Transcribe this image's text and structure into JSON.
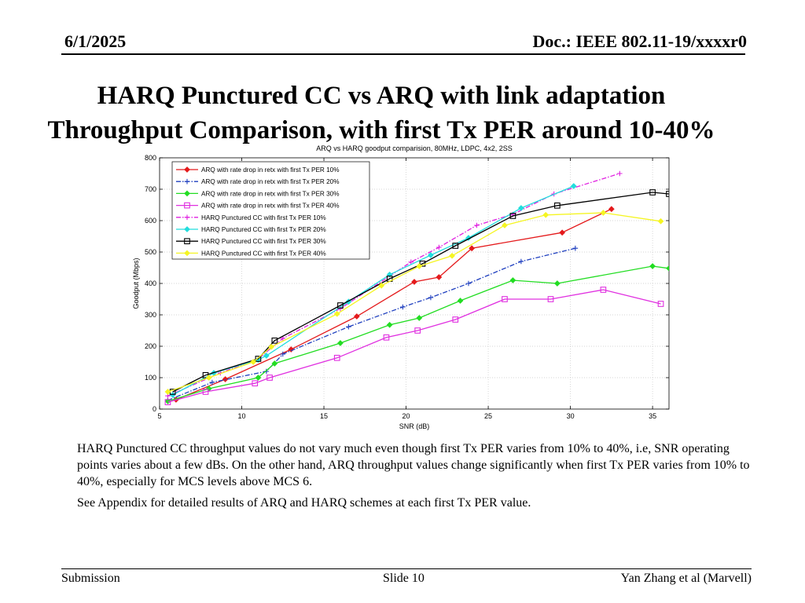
{
  "header": {
    "date": "6/1/2025",
    "doc": "Doc.: IEEE 802.11-19/xxxxr0"
  },
  "slide_title": {
    "line1": "HARQ Punctured CC vs ARQ with link adaptation",
    "line2": "Throughput Comparison, with first Tx PER around 10-40%"
  },
  "chart_data": {
    "type": "line",
    "title": "ARQ vs HARQ goodput comparision, 80MHz, LDPC, 4x2, 2SS",
    "xlabel": "SNR (dB)",
    "ylabel": "Goodput  (Mbps)",
    "xlim": [
      5,
      36
    ],
    "ylim": [
      0,
      800
    ],
    "xticks": [
      5,
      10,
      15,
      20,
      25,
      30,
      35
    ],
    "yticks": [
      0,
      100,
      200,
      300,
      400,
      500,
      600,
      700,
      800
    ],
    "grid": true,
    "legend_position": "top-left",
    "series": [
      {
        "name": "ARQ with rate drop in retx with first Tx PER 10%",
        "color": "#e41a1c",
        "dash": "solid",
        "marker": "diamond",
        "x": [
          6.0,
          9.0,
          13.0,
          17.0,
          20.5,
          22.0,
          24.0,
          29.5,
          32.5
        ],
        "y": [
          30,
          95,
          190,
          295,
          405,
          420,
          512,
          562,
          637
        ]
      },
      {
        "name": "ARQ with rate drop in retx with first Tx PER 20%",
        "color": "#1f3fbf",
        "dash": "dashdot",
        "marker": "plus",
        "x": [
          5.5,
          8.2,
          11.5,
          12.5,
          16.5,
          19.8,
          21.5,
          23.8,
          27.0,
          30.3
        ],
        "y": [
          28,
          85,
          120,
          175,
          262,
          325,
          355,
          400,
          470,
          512
        ]
      },
      {
        "name": "ARQ with rate drop in retx with first Tx PER 30%",
        "color": "#22dd22",
        "dash": "solid",
        "marker": "diamond",
        "x": [
          5.5,
          8.0,
          11.0,
          12.0,
          16.0,
          19.0,
          20.8,
          23.3,
          26.5,
          29.2,
          35.0,
          36.0
        ],
        "y": [
          25,
          65,
          100,
          145,
          210,
          268,
          290,
          345,
          410,
          400,
          455,
          448
        ]
      },
      {
        "name": "ARQ with rate drop in retx with first Tx PER 40%",
        "color": "#e030e0",
        "dash": "solid",
        "marker": "square",
        "x": [
          5.5,
          7.8,
          10.8,
          11.7,
          15.8,
          18.8,
          20.7,
          23.0,
          26.0,
          28.8,
          32.0,
          35.5
        ],
        "y": [
          22,
          55,
          82,
          100,
          163,
          228,
          250,
          285,
          350,
          350,
          380,
          335
        ]
      },
      {
        "name": "HARQ Punctured CC with first Tx PER 10%",
        "color": "#e020e0",
        "dash": "dashdot",
        "marker": "plus",
        "x": [
          5.5,
          8.7,
          11.0,
          12.5,
          16.0,
          20.3,
          22.0,
          24.3,
          26.5,
          29.0,
          33.0
        ],
        "y": [
          42,
          115,
          160,
          225,
          320,
          468,
          515,
          585,
          620,
          685,
          750
        ]
      },
      {
        "name": "HARQ Punctured CC with first Tx PER 20%",
        "color": "#22dddd",
        "dash": "solid",
        "marker": "diamond",
        "x": [
          5.8,
          8.3,
          11.0,
          11.5,
          16.5,
          19.0,
          21.5,
          23.8,
          27.0,
          30.2
        ],
        "y": [
          45,
          115,
          157,
          170,
          342,
          428,
          490,
          545,
          640,
          710
        ]
      },
      {
        "name": "HARQ Punctured CC with first Tx PER 30%",
        "color": "#000000",
        "dash": "solid",
        "marker": "square",
        "x": [
          5.8,
          7.8,
          11.0,
          12.0,
          16.0,
          19.0,
          21.0,
          23.0,
          26.5,
          29.2,
          35.0,
          36.0
        ],
        "y": [
          55,
          108,
          160,
          218,
          330,
          415,
          463,
          520,
          615,
          648,
          690,
          685
        ]
      },
      {
        "name": "HARQ Punctured CC with first Tx PER 40%",
        "color": "#f5f522",
        "dash": "solid",
        "marker": "diamond",
        "x": [
          5.5,
          8.0,
          10.7,
          11.8,
          15.8,
          18.5,
          20.8,
          22.8,
          26.0,
          28.5,
          32.0,
          35.5
        ],
        "y": [
          55,
          100,
          150,
          198,
          303,
          393,
          455,
          488,
          585,
          618,
          625,
          598
        ]
      }
    ]
  },
  "body": {
    "para1": "HARQ Punctured CC throughput values do not vary much even though first Tx PER varies from 10% to 40%, i.e, SNR operating points varies about a few dBs. On the other hand, ARQ throughput values change significantly when first Tx PER varies from 10% to 40%, especially for MCS levels above MCS 6.",
    "para2": "See Appendix for detailed results of ARQ and HARQ schemes at each first Tx PER value."
  },
  "footer": {
    "left": "Submission",
    "center": "Slide 10",
    "right": "Yan Zhang et al (Marvell)"
  }
}
